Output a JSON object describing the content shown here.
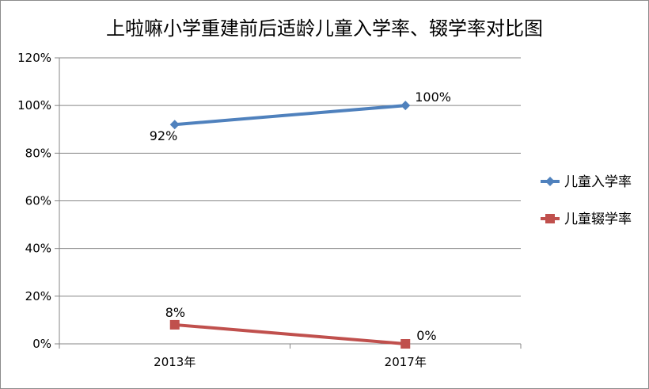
{
  "chart_data": {
    "type": "line",
    "title": "上啦嘛小学重建前后适龄儿童入学率、辍学率对比图",
    "categories": [
      "2013年",
      "2017年"
    ],
    "series": [
      {
        "name": "儿童入学率",
        "values": [
          0.92,
          1.0
        ],
        "labels": [
          "92%",
          "100%"
        ],
        "color": "#4f81bd",
        "marker": "diamond"
      },
      {
        "name": "儿童辍学率",
        "values": [
          0.08,
          0.0
        ],
        "labels": [
          "8%",
          "0%"
        ],
        "color": "#c0504d",
        "marker": "square"
      }
    ],
    "yticks": [
      "0%",
      "20%",
      "40%",
      "60%",
      "80%",
      "100%",
      "120%"
    ],
    "ylim": [
      0,
      1.2
    ],
    "xlabel": "",
    "ylabel": "",
    "grid": true,
    "legend": "right"
  }
}
